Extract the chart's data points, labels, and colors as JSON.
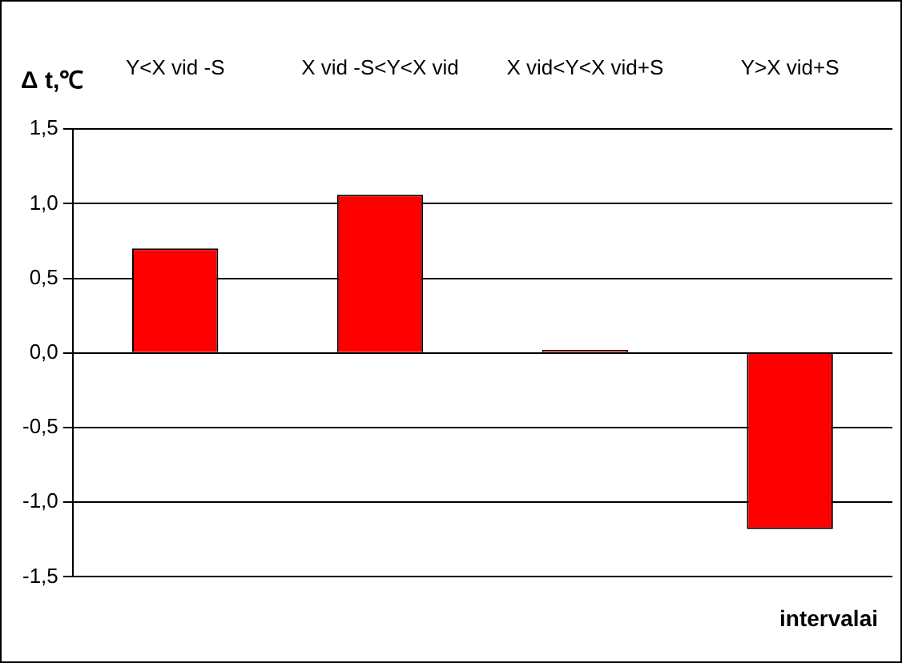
{
  "chart_data": {
    "type": "bar",
    "categories": [
      "Y<X vid -S",
      "X vid -S<Y<X vid",
      "X vid<Y<X vid+S",
      "Y>X vid+S"
    ],
    "values": [
      0.7,
      1.06,
      0.02,
      -1.18
    ],
    "color": "#ff0000",
    "ylabel": "Δ t,℃",
    "xlabel": "intervalai",
    "ylim": [
      -1.5,
      1.5
    ],
    "yticks": [
      {
        "value": -1.5,
        "label": "-1,5"
      },
      {
        "value": -1,
        "label": "-1,0"
      },
      {
        "value": -0.5,
        "label": "-0,5"
      },
      {
        "value": 0,
        "label": "0,0"
      },
      {
        "value": 0.5,
        "label": "0,5"
      },
      {
        "value": 1,
        "label": "1,0"
      },
      {
        "value": 1.5,
        "label": "1,5"
      }
    ],
    "grid": "y",
    "legend": false
  }
}
